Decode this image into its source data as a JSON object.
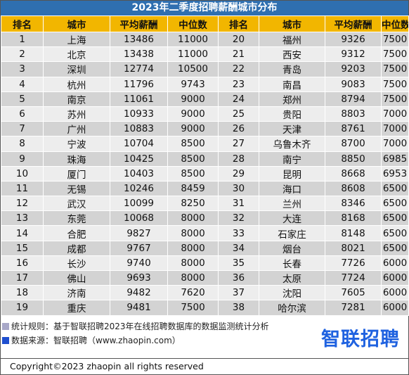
{
  "title": "2023年二季度招聘薪酬城市分布",
  "headers": [
    "排名",
    "城市",
    "平均薪酬",
    "中位数",
    "排名",
    "城市",
    "平均薪酬",
    "中位数"
  ],
  "rows": [
    {
      "left": {
        "rank": "1",
        "city": "上海",
        "avg": "13486",
        "median": "11000"
      },
      "right": {
        "rank": "20",
        "city": "福州",
        "avg": "9326",
        "median": "7500"
      }
    },
    {
      "left": {
        "rank": "2",
        "city": "北京",
        "avg": "13438",
        "median": "11000"
      },
      "right": {
        "rank": "21",
        "city": "西安",
        "avg": "9312",
        "median": "7500"
      }
    },
    {
      "left": {
        "rank": "3",
        "city": "深圳",
        "avg": "12774",
        "median": "10500"
      },
      "right": {
        "rank": "22",
        "city": "青岛",
        "avg": "9203",
        "median": "7500"
      }
    },
    {
      "left": {
        "rank": "4",
        "city": "杭州",
        "avg": "11796",
        "median": "9743"
      },
      "right": {
        "rank": "23",
        "city": "南昌",
        "avg": "9083",
        "median": "7500"
      }
    },
    {
      "left": {
        "rank": "5",
        "city": "南京",
        "avg": "11061",
        "median": "9000"
      },
      "right": {
        "rank": "24",
        "city": "郑州",
        "avg": "8794",
        "median": "7500"
      }
    },
    {
      "left": {
        "rank": "6",
        "city": "苏州",
        "avg": "10933",
        "median": "9000"
      },
      "right": {
        "rank": "25",
        "city": "贵阳",
        "avg": "8803",
        "median": "7000"
      }
    },
    {
      "left": {
        "rank": "7",
        "city": "广州",
        "avg": "10883",
        "median": "9000"
      },
      "right": {
        "rank": "26",
        "city": "天津",
        "avg": "8761",
        "median": "7000"
      }
    },
    {
      "left": {
        "rank": "8",
        "city": "宁波",
        "avg": "10704",
        "median": "8500"
      },
      "right": {
        "rank": "27",
        "city": "乌鲁木齐",
        "avg": "8700",
        "median": "7000"
      }
    },
    {
      "left": {
        "rank": "9",
        "city": "珠海",
        "avg": "10425",
        "median": "8500"
      },
      "right": {
        "rank": "28",
        "city": "南宁",
        "avg": "8850",
        "median": "6985"
      }
    },
    {
      "left": {
        "rank": "10",
        "city": "厦门",
        "avg": "10403",
        "median": "8500"
      },
      "right": {
        "rank": "29",
        "city": "昆明",
        "avg": "8668",
        "median": "6953"
      }
    },
    {
      "left": {
        "rank": "11",
        "city": "无锡",
        "avg": "10246",
        "median": "8459"
      },
      "right": {
        "rank": "30",
        "city": "海口",
        "avg": "8608",
        "median": "6500"
      }
    },
    {
      "left": {
        "rank": "12",
        "city": "武汉",
        "avg": "10099",
        "median": "8250"
      },
      "right": {
        "rank": "31",
        "city": "兰州",
        "avg": "8346",
        "median": "6500"
      }
    },
    {
      "left": {
        "rank": "13",
        "city": "东莞",
        "avg": "10068",
        "median": "8000"
      },
      "right": {
        "rank": "32",
        "city": "大连",
        "avg": "8168",
        "median": "6500"
      }
    },
    {
      "left": {
        "rank": "14",
        "city": "合肥",
        "avg": "9827",
        "median": "8000"
      },
      "right": {
        "rank": "33",
        "city": "石家庄",
        "avg": "8148",
        "median": "6500"
      }
    },
    {
      "left": {
        "rank": "15",
        "city": "成都",
        "avg": "9767",
        "median": "8000"
      },
      "right": {
        "rank": "34",
        "city": "烟台",
        "avg": "8021",
        "median": "6500"
      }
    },
    {
      "left": {
        "rank": "16",
        "city": "长沙",
        "avg": "9740",
        "median": "8000"
      },
      "right": {
        "rank": "35",
        "city": "长春",
        "avg": "7726",
        "median": "6000"
      }
    },
    {
      "left": {
        "rank": "17",
        "city": "佛山",
        "avg": "9693",
        "median": "8000"
      },
      "right": {
        "rank": "36",
        "city": "太原",
        "avg": "7724",
        "median": "6000"
      }
    },
    {
      "left": {
        "rank": "18",
        "city": "济南",
        "avg": "9482",
        "median": "7620"
      },
      "right": {
        "rank": "37",
        "city": "沈阳",
        "avg": "7605",
        "median": "6000"
      }
    },
    {
      "left": {
        "rank": "19",
        "city": "重庆",
        "avg": "9481",
        "median": "7500"
      },
      "right": {
        "rank": "38",
        "city": "哈尔滨",
        "avg": "7281",
        "median": "6000"
      }
    }
  ],
  "notes": {
    "method": "统计规则：基于智联招聘2023年在线招聘数据库的数据监测统计分析",
    "source": "数据来源：智联招聘（www.zhaopin.com）"
  },
  "logo_text": "智联招聘",
  "copyright": "Copyright©2023 zhaopin all rights reserved",
  "colors": {
    "title_bg": "#2f6fb0",
    "header_bg": "#f2b600",
    "row_odd": "#d3d3d3",
    "row_even": "#ededed",
    "logo": "#1f62e0",
    "note_marker_1": "#a8a8c8",
    "note_marker_2": "#1f4fcf"
  },
  "icons": {
    "note_marker_1": "square-marker-icon",
    "note_marker_2": "square-marker-icon"
  }
}
